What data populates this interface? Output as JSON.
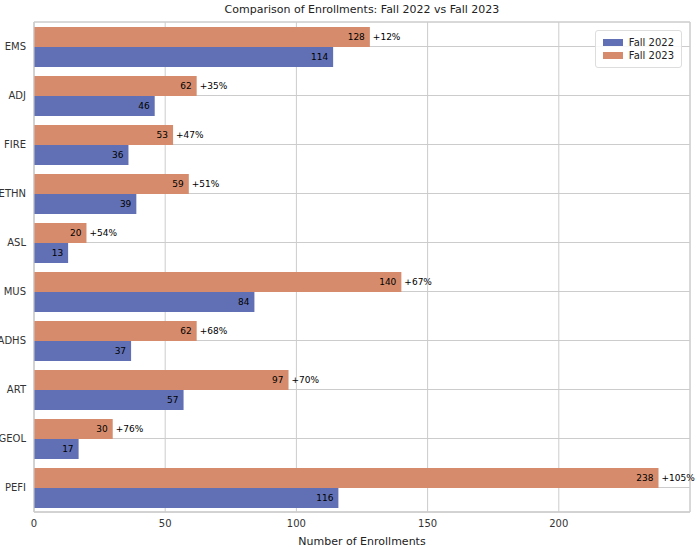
{
  "chart_data": {
    "type": "bar",
    "title": "Comparison of Enrollments: Fall 2022 vs Fall 2023",
    "x_label": "Number of Enrollments",
    "orientation": "horizontal",
    "categories": [
      "EMS",
      "ADJ",
      "FIRE",
      "ETHN",
      "ASL",
      "MUS",
      "ADHS",
      "ART",
      "GEOL",
      "PEFI"
    ],
    "series": [
      {
        "name": "Fall 2022",
        "color": "#6170b4",
        "values": [
          114,
          46,
          36,
          39,
          13,
          84,
          37,
          57,
          17,
          116
        ]
      },
      {
        "name": "Fall 2023",
        "color": "#d68c6c",
        "values": [
          128,
          62,
          53,
          59,
          20,
          140,
          62,
          97,
          30,
          238
        ]
      }
    ],
    "annotations": [
      {
        "category": "EMS",
        "text": "+12%"
      },
      {
        "category": "ADJ",
        "text": "+35%"
      },
      {
        "category": "FIRE",
        "text": "+47%"
      },
      {
        "category": "ETHN",
        "text": "+51%"
      },
      {
        "category": "ASL",
        "text": "+54%"
      },
      {
        "category": "MUS",
        "text": "+67%"
      },
      {
        "category": "ADHS",
        "text": "+68%"
      },
      {
        "category": "ART",
        "text": "+70%"
      },
      {
        "category": "GEOL",
        "text": "+76%"
      },
      {
        "category": "PEFI",
        "text": "+105%"
      }
    ],
    "xlim": [
      0,
      250
    ],
    "xticks": [
      0,
      50,
      100,
      150,
      200
    ],
    "grid": true,
    "legend": "upper right",
    "data_labels": true
  }
}
